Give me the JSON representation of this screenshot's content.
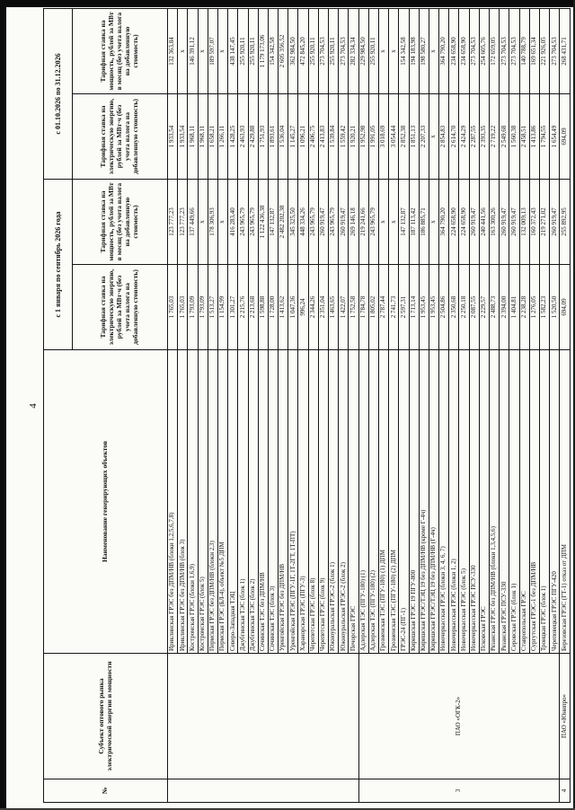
{
  "page": {
    "number": "4"
  },
  "table": {
    "headers": {
      "num": "№",
      "subject": "Субъект оптового рынка электрической энергии и мощности",
      "object": "Наименование генерирующих объектов",
      "period1": "с 1 января по сентябрь 2026 года",
      "period2": "с 01.10.2026 по 31.12.2026",
      "energy": "Тарифная ставка на электрическую энергию, рублей за МВт·ч (без учета налога на добавленную стоимость)",
      "capacity": "Тарифная ставка на мощность, рублей за МВт в месяц (без учета налога на добавленную стоимость)"
    },
    "groups": [
      {
        "num": "",
        "subject": "",
        "rows": [
          {
            "name": "Ириклинская ГРЭС без ДПМ/НВ (блоки 1,2,5,6,7,8)",
            "e1": "1 765,03",
            "c1": "123 777,23",
            "e2": "1 933,54",
            "c2": "132 363,84"
          },
          {
            "name": "Ириклинская ГРЭС без ДПМ/НВ (блок 3)",
            "e1": "1 765,03",
            "c1": "123 777,23",
            "e2": "1 933,54",
            "c2": "х"
          },
          {
            "name": "Костромская ГРЭС (блоки 1,6,9)",
            "e1": "1 793,09",
            "c1": "137 449,66",
            "e2": "1 968,11",
            "c2": "146 391,12"
          },
          {
            "name": "Костромская ГРЭС (блок 5)",
            "e1": "1 793,09",
            "c1": "х",
            "e2": "1 968,11",
            "c2": "х"
          },
          {
            "name": "Пермская ГРЭС без ДПМ/НВ (блоки 2,3)",
            "e1": "1 513,27",
            "c1": "178 306,93",
            "e2": "1 658,21",
            "c2": "189 597,07"
          },
          {
            "name": "Пермская ГРЭС (БЛ-4), объект №5 ДПМ",
            "e1": "1 154,99",
            "c1": "х",
            "e2": "1 266,11",
            "c2": "х"
          },
          {
            "name": "Северо-Западная ТЭЦ",
            "e1": "1 301,27",
            "c1": "416 283,40",
            "e2": "1 428,25",
            "c2": "438 147,45"
          },
          {
            "name": "Джубгинская ТЭС (блок 1)",
            "e1": "2 215,76",
            "c1": "243 965,79",
            "e2": "2 463,93",
            "c2": "255 920,11"
          },
          {
            "name": "Джубгинская ТЭС (блок 2)",
            "e1": "2 213,68",
            "c1": "243 965,79",
            "e2": "2 429,88",
            "c2": "255 920,11"
          },
          {
            "name": "Сочинская ТЭС без ДПМ/НВ",
            "e1": "1 598,88",
            "c1": "1 122 436,38",
            "e2": "1 751,93",
            "c2": "1 179 173,06"
          },
          {
            "name": "Сочинская ТЭС (блок 3)",
            "e1": "1 728,00",
            "c1": "147 132,87",
            "e2": "1 893,61",
            "c2": "154 342,58"
          },
          {
            "name": "Уренгойская ГРЭС без ДПМ/НВ",
            "e1": "1 413,62",
            "c1": "2 482 202,38",
            "e2": "1 536,04",
            "c2": "2 605 356,52"
          },
          {
            "name": "Уренгойская ГРЭС (ПГУ-1Г, 1Т-2ГТ, 1Т-ПТ)",
            "e1": "1 047,36",
            "c1": "345 325,50",
            "e2": "1 145,27",
            "c2": "362 984,50"
          },
          {
            "name": "Харанорская ГРЭС (ПГУ-3)",
            "e1": "996,24",
            "c1": "448 334,26",
            "e2": "1 096,21",
            "c2": "472 845,20"
          },
          {
            "name": "Черепетская ГРЭС (блок 8)",
            "e1": "2 344,26",
            "c1": "243 965,79",
            "e2": "2 406,75",
            "c2": "255 920,11"
          },
          {
            "name": "Черепетская ГРЭС (блок 9)",
            "e1": "2 351,04",
            "c1": "260 919,47",
            "e2": "2 413,83",
            "c2": "273 704,53"
          },
          {
            "name": "Южноуральская ГРЭС-2 (блок 1)",
            "e1": "1 463,65",
            "c1": "243 965,79",
            "e2": "1 539,84",
            "c2": "255 920,11"
          },
          {
            "name": "Южноуральская ГРЭС-2 (блок 2)",
            "e1": "1 422,07",
            "c1": "260 919,47",
            "e2": "1 559,42",
            "c2": "273 704,53"
          },
          {
            "name": "Печорская ГРЭС",
            "e1": "1 752,58",
            "c1": "269 146,18",
            "e2": "1 920,21",
            "c2": "282 334,34"
          }
        ]
      },
      {
        "num": "3",
        "subject": "ПАО «ОГК-2»",
        "rows": [
          {
            "name": "Адлерская ТЭС (ПГУ-180) (1)",
            "e1": "1 784,78",
            "c1": "219 241,66",
            "e2": "1 952,98",
            "c2": "229 984,50"
          },
          {
            "name": "Адлерская ТЭС (ПГУ-180) (2)",
            "e1": "1 805,02",
            "c1": "243 965,79",
            "e2": "1 991,05",
            "c2": "255 920,11"
          },
          {
            "name": "Грозненская ТЭС (ПГУ-180) (1) ДПМ",
            "e1": "2 787,44",
            "c1": "х",
            "e2": "3 018,69",
            "c2": "х"
          },
          {
            "name": "Грозненская ТЭС (ПГУ-180) (2) ДПМ",
            "e1": "2 741,73",
            "c1": "х",
            "e2": "3 054,44",
            "c2": "х"
          },
          {
            "name": "ГРЭС-24 (ПГ-1)",
            "e1": "2 597,31",
            "c1": "147 132,87",
            "e2": "2 852,38",
            "c2": "154 342,58"
          },
          {
            "name": "Киришская ГРЭС 19 ПГУ-800",
            "e1": "1 713,14",
            "c1": "187 113,42",
            "e2": "1 851,13",
            "c2": "194 183,98"
          },
          {
            "name": "Киришская ГРЭС/ТЭЦ 19 без ДПМ/НВ (кроме Г-4ч)",
            "e1": "1 953,45",
            "c1": "186 885,71",
            "e2": "2 207,33",
            "c2": "198 580,27"
          },
          {
            "name": "Киришская ГРЭС/ТЭЦ 19 без ДПМ/НВ (Г-4ч)",
            "e1": "1 953,45",
            "c1": "х",
            "e2": "х",
            "c2": "х"
          },
          {
            "name": "Новочеркасская ГРЭС (блоки 3, 4, 6, 7)",
            "e1": "2 504,86",
            "c1": "364 790,20",
            "e2": "2 854,83",
            "c2": "364 790,20"
          },
          {
            "name": "Новочеркасская ГРЭС (блоки 1, 2)",
            "e1": "2 350,68",
            "c1": "224 658,90",
            "e2": "2 614,70",
            "c2": "234 658,90"
          },
          {
            "name": "Новочеркасская ГРЭС (блок 5)",
            "e1": "2 250,18",
            "c1": "224 658,90",
            "e2": "2 424,29",
            "c2": "234 658,90"
          },
          {
            "name": "Новочеркасская ГРЭС ПСУ-330",
            "e1": "2 087,55",
            "c1": "260 919,47",
            "e2": "2 287,55",
            "c2": "273 704,53"
          },
          {
            "name": "Псковская ГРЭС",
            "e1": "2 229,57",
            "c1": "240 441,56",
            "e2": "2 393,35",
            "c2": "254 605,76"
          },
          {
            "name": "Рязанская ГРЭС без ДПМ/НВ (блоки 1,3,4,5,6)",
            "e1": "2 488,73",
            "c1": "163 300,26",
            "e2": "2 719,22",
            "c2": "172 659,05"
          },
          {
            "name": "Рязанская ГРЭС ПСУ-330",
            "e1": "2 394,00",
            "c1": "260 919,47",
            "e2": "2 549,68",
            "c2": "273 704,53"
          },
          {
            "name": "Серовская ГРЭС (блок 1)",
            "e1": "1 404,81",
            "c1": "260 919,47",
            "e2": "1 560,38",
            "c2": "273 704,53"
          },
          {
            "name": "Ставропольская ГРЭС",
            "e1": "2 238,28",
            "c1": "132 009,13",
            "e2": "2 458,51",
            "c2": "140 788,79"
          },
          {
            "name": "Сургутская ГРЭС-1 без ДПМ/НВ",
            "e1": "1 276,05",
            "c1": "160 372,43",
            "e2": "1 413,86",
            "c2": "169 651,34"
          },
          {
            "name": "Троицкая ГРЭС (блок 1)",
            "e1": "1 582,23",
            "c1": "219 271,02",
            "e2": "1 794,55",
            "c2": "221 926,05"
          },
          {
            "name": "Череповецкая ГРЭС ПГУ-420",
            "e1": "1 520,50",
            "c1": "260 919,47",
            "e2": "1 654,49",
            "c2": "273 704,53"
          }
        ]
      },
      {
        "num": "4",
        "subject": "ПАО «Юнипро»",
        "rows": [
          {
            "name": "Березовская ГРЭС (ГТ-1) отказ от ДПМ",
            "e1": "694,09",
            "c1": "255 892,95",
            "e2": "694,09",
            "c2": "268 431,71"
          }
        ]
      }
    ]
  }
}
